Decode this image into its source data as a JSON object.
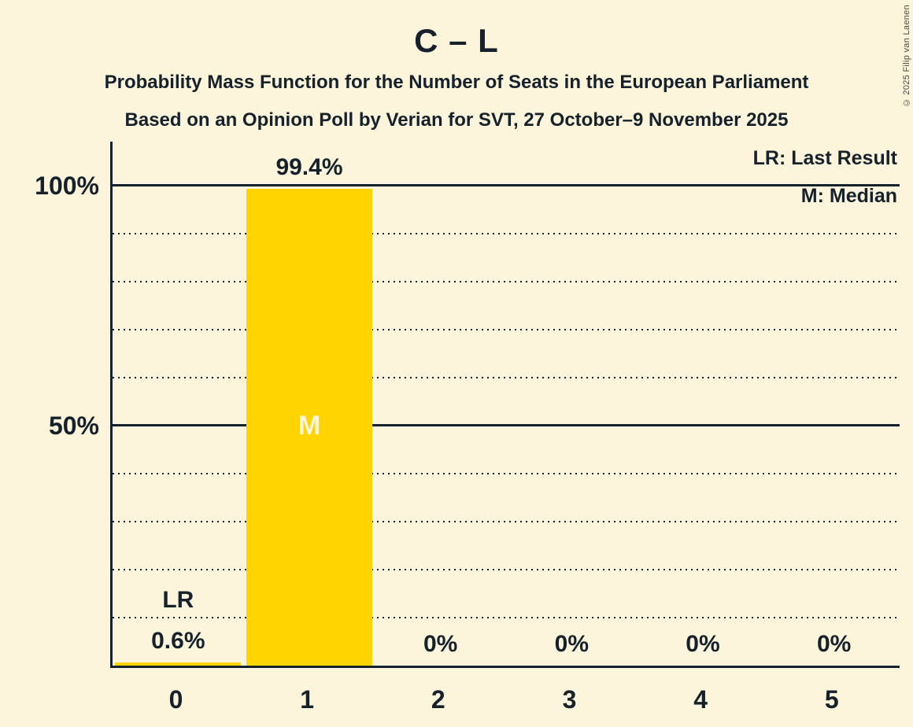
{
  "header": {
    "title": "C – L",
    "subtitle_line1": "Probability Mass Function for the Number of Seats in the European Parliament",
    "subtitle_line2": "Based on an Opinion Poll by Verian for SVT, 27 October–9 November 2025"
  },
  "legend": {
    "last_result": "LR: Last Result",
    "median": "M: Median"
  },
  "copyright": "© 2025 Filip van Laenen",
  "colors": {
    "background": "#FCF5DC",
    "bar": "#FFD400",
    "text": "#15212B",
    "median_text_on_bar": "#FCF5DC"
  },
  "chart_data": {
    "type": "bar",
    "title": "C – L",
    "categories": [
      "0",
      "1",
      "2",
      "3",
      "4",
      "5"
    ],
    "values": [
      0.6,
      99.4,
      0,
      0,
      0,
      0
    ],
    "value_labels": [
      "0.6%",
      "99.4%",
      "0%",
      "0%",
      "0%",
      "0%"
    ],
    "xlabel": "",
    "ylabel": "",
    "ylim": [
      0,
      100
    ],
    "ytick_solid": [
      {
        "value": 50,
        "label": "50%"
      },
      {
        "value": 100,
        "label": "100%"
      }
    ],
    "ytick_dotted": [
      10,
      20,
      30,
      40,
      60,
      70,
      80,
      90
    ],
    "grid": "horizontal",
    "legend_position": "top-right",
    "median_category_index": 1,
    "median_marker": "M",
    "last_result_category_index": 0,
    "last_result_marker": "LR"
  }
}
